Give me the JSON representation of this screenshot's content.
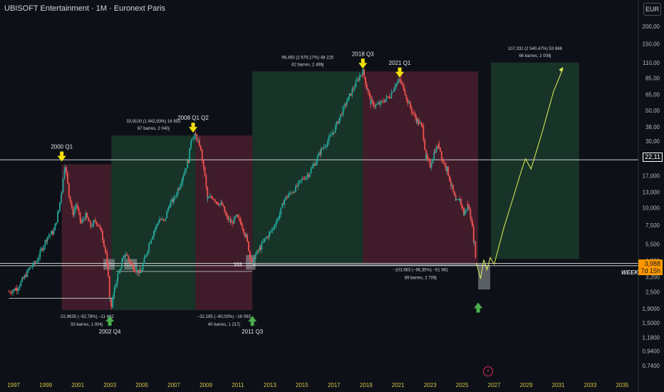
{
  "header": {
    "title": "UBISOFT Entertainment · 1M · Euronext Paris",
    "currency_button": "EUR",
    "timeframe_badge": "WEEKLY"
  },
  "colors": {
    "background": "#0d1117",
    "up": "#26a69a",
    "down": "#ef5350",
    "up_zone": "#1b3a2b",
    "down_zone": "#4a1f2e",
    "arrow_yellow": "#f5e10b",
    "arrow_green": "#4caf50",
    "projection": "#d4e157",
    "price_tag": "#ff9800"
  },
  "price_tags": {
    "level": "22,11",
    "last_price": "3,988",
    "countdown": "7d 15h"
  },
  "misc_labels": {
    "dollar_marker": "$$$",
    "bolt_icon": "lightning-bolt-icon"
  },
  "chart_data": {
    "type": "candlestick",
    "title": "UBISOFT Entertainment · 1M · Euronext Paris",
    "y_scale": "log",
    "y_unit": "EUR",
    "xlim": [
      1996.5,
      2036
    ],
    "ylim": [
      0.62,
      250
    ],
    "x_ticks": [
      "1997",
      "1999",
      "2001",
      "2003",
      "2005",
      "2007",
      "2009",
      "2011",
      "2013",
      "2015",
      "2017",
      "2019",
      "2021",
      "2023",
      "2025",
      "2027",
      "2029",
      "2031",
      "2033",
      "2035"
    ],
    "y_ticks": [
      "200,00",
      "150,00",
      "110,00",
      "85,00",
      "65,00",
      "50,00",
      "38,00",
      "30,00",
      "22,11",
      "17,000",
      "13,000",
      "10,000",
      "7,500",
      "5,500",
      "4,200",
      "3,200",
      "2,500",
      "1,9000",
      "1,5000",
      "1,1800",
      "0,9400",
      "0,7400"
    ],
    "price_path": [
      [
        1996.7,
        2.5
      ],
      [
        1997.2,
        2.65
      ],
      [
        1997.6,
        3.1
      ],
      [
        1998.0,
        3.7
      ],
      [
        1998.4,
        4.1
      ],
      [
        1998.8,
        5.2
      ],
      [
        1999.1,
        6.2
      ],
      [
        1999.5,
        6.8
      ],
      [
        1999.8,
        9.5
      ],
      [
        2000.0,
        13.5
      ],
      [
        2000.2,
        20.5
      ],
      [
        2000.45,
        12.5
      ],
      [
        2000.7,
        9.2
      ],
      [
        2000.9,
        10.5
      ],
      [
        2001.2,
        7.8
      ],
      [
        2001.5,
        8.8
      ],
      [
        2001.8,
        7.4
      ],
      [
        2002.1,
        8.0
      ],
      [
        2002.3,
        7.6
      ],
      [
        2002.55,
        6.1
      ],
      [
        2002.75,
        4.8
      ],
      [
        2002.9,
        3.1
      ],
      [
        2003.0,
        2.2
      ],
      [
        2003.1,
        2.0
      ],
      [
        2003.3,
        2.6
      ],
      [
        2003.5,
        3.3
      ],
      [
        2003.8,
        4.2
      ],
      [
        2004.0,
        4.7
      ],
      [
        2004.3,
        4.0
      ],
      [
        2004.6,
        3.6
      ],
      [
        2004.9,
        3.4
      ],
      [
        2005.2,
        4.4
      ],
      [
        2005.5,
        5.8
      ],
      [
        2005.8,
        7.0
      ],
      [
        2006.1,
        8.3
      ],
      [
        2006.4,
        8.0
      ],
      [
        2006.7,
        10.5
      ],
      [
        2007.0,
        11.5
      ],
      [
        2007.3,
        14.0
      ],
      [
        2007.6,
        17.5
      ],
      [
        2007.9,
        22.0
      ],
      [
        2008.1,
        32.0
      ],
      [
        2008.35,
        33.0
      ],
      [
        2008.6,
        28.5
      ],
      [
        2008.85,
        20.0
      ],
      [
        2009.1,
        11.5
      ],
      [
        2009.4,
        12.0
      ],
      [
        2009.7,
        11.0
      ],
      [
        2010.0,
        10.5
      ],
      [
        2010.3,
        8.5
      ],
      [
        2010.6,
        7.8
      ],
      [
        2010.9,
        8.6
      ],
      [
        2011.2,
        7.8
      ],
      [
        2011.5,
        6.2
      ],
      [
        2011.75,
        4.6
      ],
      [
        2011.9,
        4.0
      ],
      [
        2012.1,
        4.6
      ],
      [
        2012.4,
        5.2
      ],
      [
        2012.7,
        6.0
      ],
      [
        2013.0,
        6.6
      ],
      [
        2013.3,
        7.6
      ],
      [
        2013.6,
        9.0
      ],
      [
        2013.9,
        11.5
      ],
      [
        2014.2,
        12.5
      ],
      [
        2014.6,
        13.8
      ],
      [
        2015.0,
        16.0
      ],
      [
        2015.4,
        17.5
      ],
      [
        2015.8,
        21.0
      ],
      [
        2016.2,
        26.0
      ],
      [
        2016.6,
        30.0
      ],
      [
        2017.0,
        36.0
      ],
      [
        2017.4,
        46.0
      ],
      [
        2017.8,
        58.0
      ],
      [
        2018.2,
        72.0
      ],
      [
        2018.6,
        88.0
      ],
      [
        2018.8,
        95.0
      ],
      [
        2019.05,
        72.0
      ],
      [
        2019.3,
        57.0
      ],
      [
        2019.6,
        54.0
      ],
      [
        2019.9,
        56.0
      ],
      [
        2020.2,
        60.0
      ],
      [
        2020.5,
        64.0
      ],
      [
        2020.8,
        76.0
      ],
      [
        2021.1,
        82.0
      ],
      [
        2021.35,
        72.0
      ],
      [
        2021.6,
        58.0
      ],
      [
        2021.9,
        48.0
      ],
      [
        2022.2,
        42.0
      ],
      [
        2022.5,
        38.0
      ],
      [
        2022.75,
        23.0
      ],
      [
        2023.0,
        20.0
      ],
      [
        2023.3,
        26.0
      ],
      [
        2023.55,
        28.0
      ],
      [
        2023.8,
        21.5
      ],
      [
        2024.05,
        19.0
      ],
      [
        2024.35,
        14.0
      ],
      [
        2024.6,
        11.0
      ],
      [
        2024.85,
        11.5
      ],
      [
        2025.1,
        9.0
      ],
      [
        2025.35,
        10.5
      ],
      [
        2025.55,
        8.5
      ],
      [
        2025.75,
        5.5
      ],
      [
        2025.9,
        3.99
      ]
    ],
    "projection_path": [
      [
        2025.9,
        3.99
      ],
      [
        2026.15,
        3.1
      ],
      [
        2026.35,
        4.25
      ],
      [
        2026.55,
        3.6
      ],
      [
        2026.75,
        4.4
      ],
      [
        2027.0,
        3.95
      ],
      [
        2027.6,
        7.2
      ],
      [
        2028.2,
        12.0
      ],
      [
        2028.7,
        18.5
      ],
      [
        2028.95,
        22.5
      ],
      [
        2029.3,
        19.0
      ],
      [
        2030.0,
        35.0
      ],
      [
        2030.7,
        68.0
      ],
      [
        2031.3,
        100.0
      ]
    ],
    "zones": [
      {
        "kind": "down",
        "x": [
          2000.0,
          2003.1
        ],
        "y": [
          1.85,
          20.5
        ],
        "label": "-22,9635 (−92,78%) −11 482",
        "sub": "33 barres, 1 004j"
      },
      {
        "kind": "up",
        "x": [
          2003.1,
          2008.35
        ],
        "y": [
          1.85,
          33.0
        ],
        "label": "33,9100 (1 842,93%) 16 955",
        "sub": "67 barres, 2 040j"
      },
      {
        "kind": "down",
        "x": [
          2008.35,
          2011.9
        ],
        "y": [
          1.85,
          33.0
        ],
        "label": "−32,185 (−90,03%) −16 093",
        "sub": "40 barres, 1 217j"
      },
      {
        "kind": "up",
        "x": [
          2011.9,
          2018.8
        ],
        "y": [
          4.0,
          95.0
        ],
        "label": "96,450 (2 679,17%) 48 225",
        "sub": "82 barres, 2 496j"
      },
      {
        "kind": "down",
        "x": [
          2018.8,
          2026.0
        ],
        "y": [
          4.0,
          95.0
        ],
        "label": "−103,963 (−96,35%) −51 981",
        "sub": "89 barres, 2 709j"
      },
      {
        "kind": "up",
        "x": [
          2026.8,
          2032.3
        ],
        "y": [
          4.3,
          110.0
        ],
        "label": "107,332 (2 540,47%) 53 666",
        "sub": "66 barres, 2 009j"
      }
    ],
    "annotations": [
      {
        "text": "2000 Q1",
        "x": 2000.0,
        "y": 20.5,
        "kind": "top"
      },
      {
        "text": "2008 Q1 Q2",
        "x": 2008.2,
        "y": 33.0,
        "kind": "top"
      },
      {
        "text": "2018 Q3",
        "x": 2018.8,
        "y": 95.0,
        "kind": "top"
      },
      {
        "text": "2021 Q1",
        "x": 2021.1,
        "y": 82.0,
        "kind": "top"
      },
      {
        "text": "2002 Q4",
        "x": 2003.0,
        "y": 1.85,
        "kind": "bottom"
      },
      {
        "text": "2011 Q3",
        "x": 2011.9,
        "y": 1.85,
        "kind": "bottom"
      },
      {
        "text": "",
        "x": 2026.0,
        "y": 2.3,
        "kind": "bottom"
      }
    ],
    "horizontal_levels": [
      22.11,
      4.0,
      3.85
    ],
    "support_lines": [
      {
        "y": 2.25,
        "x": [
          1996.7,
          2003.3
        ]
      },
      {
        "y": 3.5,
        "x": [
          2003.4,
          2011.9
        ]
      },
      {
        "y": 3.9,
        "x": [
          2011.9,
          2026.5
        ]
      }
    ],
    "gray_boxes": [
      {
        "x": [
          2002.6,
          2003.3
        ],
        "y": [
          3.6,
          4.3
        ]
      },
      {
        "x": [
          2003.9,
          2004.7
        ],
        "y": [
          3.6,
          4.3
        ]
      },
      {
        "x": [
          2011.5,
          2012.1
        ],
        "y": [
          3.6,
          4.6
        ]
      },
      {
        "x": [
          2026.0,
          2026.75
        ],
        "y": [
          2.6,
          3.9
        ]
      }
    ]
  }
}
